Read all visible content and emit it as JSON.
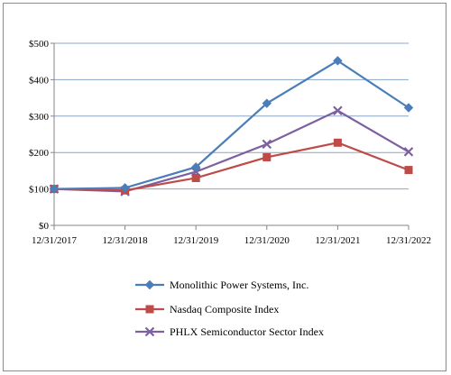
{
  "chart_data": {
    "type": "line",
    "categories": [
      "12/31/2017",
      "12/31/2018",
      "12/31/2019",
      "12/31/2020",
      "12/31/2021",
      "12/31/2022"
    ],
    "y_ticks": [
      "$0",
      "$100",
      "$200",
      "$300",
      "$400",
      "$500"
    ],
    "ylim": [
      0,
      500
    ],
    "grid": true,
    "legend_position": "bottom",
    "series": [
      {
        "name": "Monolithic Power Systems, Inc.",
        "values": [
          100,
          103,
          160,
          335,
          452,
          323
        ],
        "color": "#4a7ebb",
        "marker": "diamond"
      },
      {
        "name": "Nasdaq Composite Index",
        "values": [
          100,
          96,
          130,
          187,
          227,
          152
        ],
        "color": "#be4b48",
        "marker": "square"
      },
      {
        "name": "PHLX Semiconductor Sector Index",
        "values": [
          100,
          93,
          147,
          223,
          315,
          202
        ],
        "color": "#7d60a0",
        "marker": "x"
      }
    ]
  }
}
